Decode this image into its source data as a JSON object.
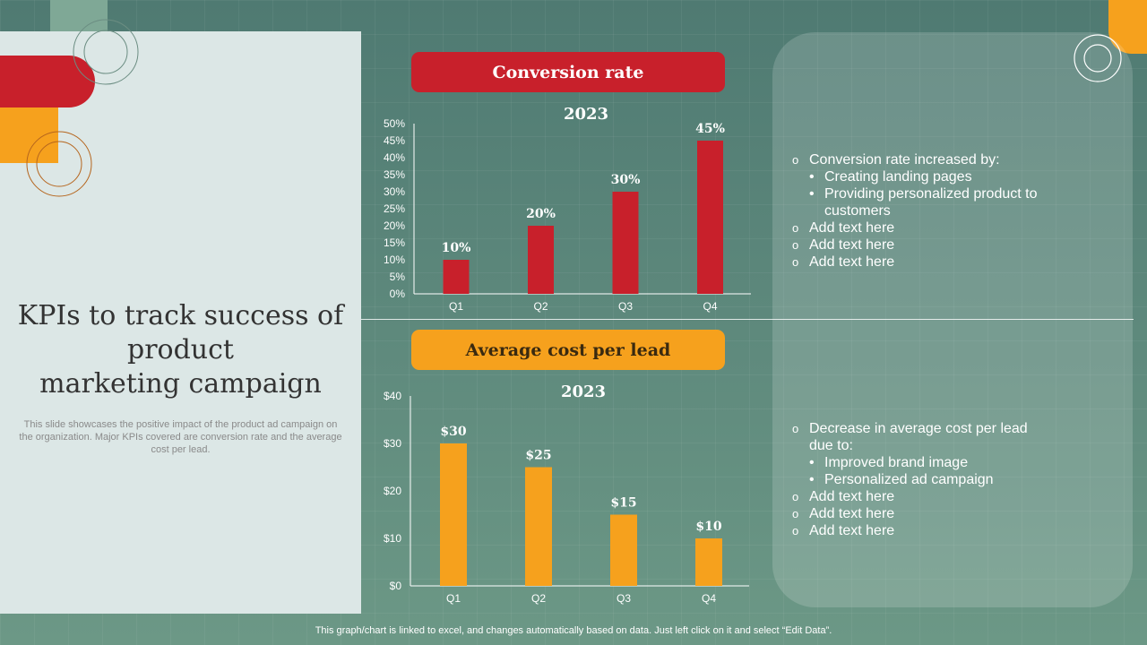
{
  "slide": {
    "title_line1": "KPIs to track success of",
    "title_line2": "product",
    "title_line3": "marketing campaign",
    "subtitle": "This slide showcases the positive impact of the product ad campaign on the organization. Major KPIs covered are conversion rate and the average cost per lead.",
    "footer": "This graph/chart is linked to excel,  and changes automatically based on data. Just left click on it and select “Edit Data”."
  },
  "colors": {
    "red": "#c8202b",
    "orange": "#f6a11d",
    "panel": "#dce7e6"
  },
  "chart_data": [
    {
      "type": "bar",
      "title": "Conversion rate",
      "subtitle": "2023",
      "categories": [
        "Q1",
        "Q2",
        "Q3",
        "Q4"
      ],
      "values": [
        10,
        20,
        30,
        45
      ],
      "value_labels": [
        "10%",
        "20%",
        "30%",
        "45%"
      ],
      "ylim": [
        0,
        50
      ],
      "yticks": [
        0,
        5,
        10,
        15,
        20,
        25,
        30,
        35,
        40,
        45,
        50
      ],
      "ytick_labels": [
        "0%",
        "5%",
        "10%",
        "15%",
        "20%",
        "25%",
        "30%",
        "35%",
        "40%",
        "45%",
        "50%"
      ],
      "color": "#c8202b",
      "grid": false
    },
    {
      "type": "bar",
      "title": "Average cost per lead",
      "subtitle": "2023",
      "categories": [
        "Q1",
        "Q2",
        "Q3",
        "Q4"
      ],
      "values": [
        30,
        25,
        15,
        10
      ],
      "value_labels": [
        "$30",
        "$25",
        "$15",
        "$10"
      ],
      "ylim": [
        0,
        40
      ],
      "yticks": [
        0,
        10,
        20,
        30,
        40
      ],
      "ytick_labels": [
        "$0",
        "$10",
        "$20",
        "$30",
        "$40"
      ],
      "color": "#f6a11d",
      "grid": false
    }
  ],
  "notes_top": {
    "heading": "Conversion rate increased by:",
    "subs": [
      "Creating landing pages",
      "Providing personalized product to customers"
    ],
    "items": [
      "Add text here",
      "Add text here",
      "Add text here"
    ]
  },
  "notes_bottom": {
    "heading": "Decrease in average cost per lead due to:",
    "subs": [
      "Improved brand image",
      "Personalized ad campaign"
    ],
    "items": [
      "Add text here",
      "Add text here",
      "Add text here"
    ]
  }
}
